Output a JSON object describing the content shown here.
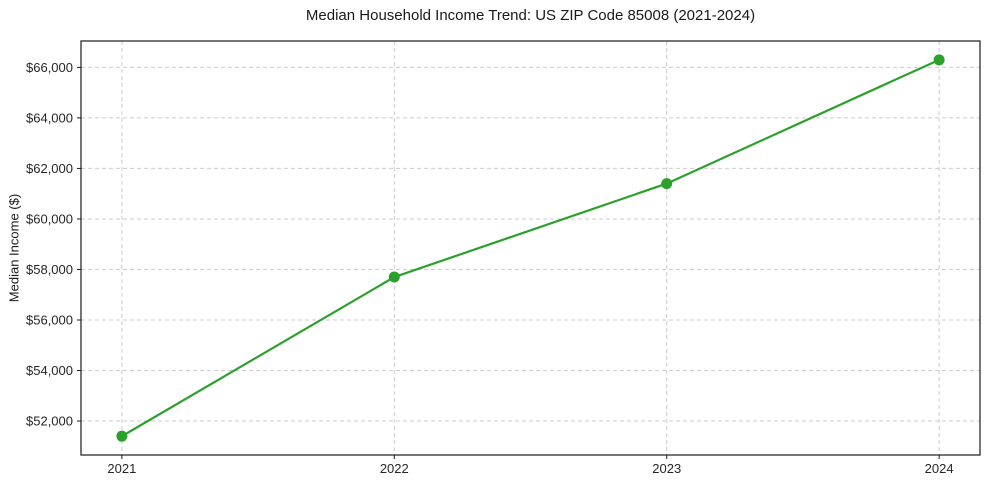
{
  "figure": {
    "background": "#ffffff"
  },
  "chart_data": {
    "type": "line",
    "title": "Median Household Income Trend: US ZIP Code 85008 (2021-2024)",
    "xlabel": "",
    "ylabel": "Median Income ($)",
    "x": [
      2021,
      2022,
      2023,
      2024
    ],
    "x_tick_labels": [
      "2021",
      "2022",
      "2023",
      "2024"
    ],
    "series": [
      {
        "name": "median-household-income",
        "values": [
          51400,
          57700,
          61400,
          66300
        ],
        "color": "#2ca02c",
        "marker": "circle"
      }
    ],
    "y_ticks": [
      52000,
      54000,
      56000,
      58000,
      60000,
      62000,
      64000,
      66000
    ],
    "y_tick_labels": [
      "$52,000",
      "$54,000",
      "$56,000",
      "$58,000",
      "$60,000",
      "$62,000",
      "$64,000",
      "$66,000"
    ],
    "xlim": [
      2020.85,
      2024.15
    ],
    "ylim": [
      50655,
      67045
    ],
    "grid": true,
    "grid_style": "dashed",
    "grid_color": "#cccccc",
    "spine_color": "#1a1a1a",
    "legend": "none",
    "background": "#ffffff"
  }
}
